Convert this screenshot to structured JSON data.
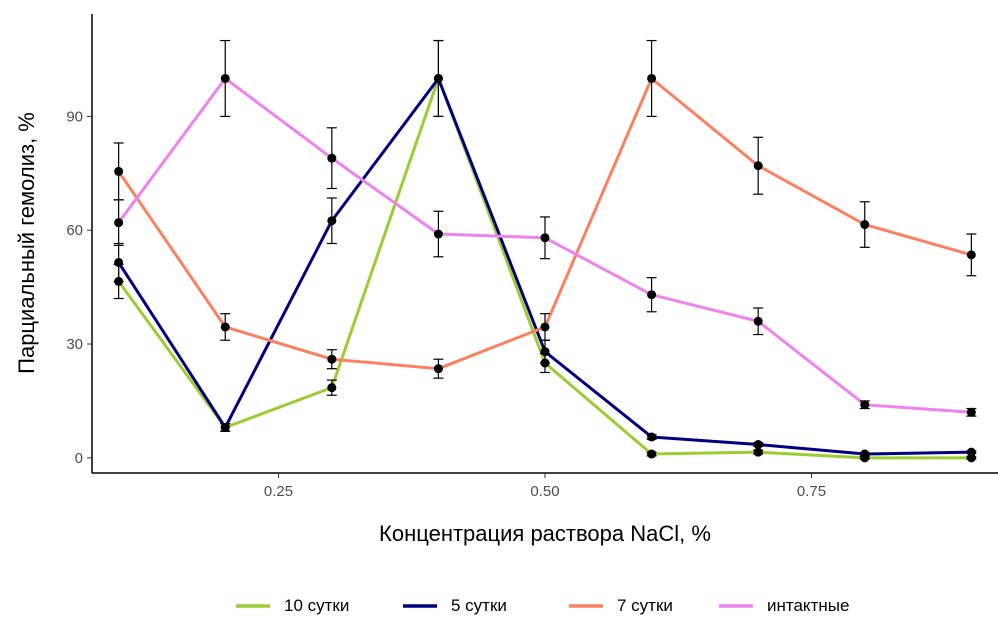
{
  "chart_data": {
    "type": "line",
    "xlabel": "Концентрация раствора NaCl, %",
    "ylabel": "Парциальный гемолиз, %",
    "xlim": [
      0.075,
      0.925
    ],
    "ylim": [
      -4,
      117
    ],
    "x_ticks": [
      {
        "value": 0.25,
        "label": "0.25"
      },
      {
        "value": 0.5,
        "label": "0.50"
      },
      {
        "value": 0.75,
        "label": "0.75"
      }
    ],
    "y_ticks": [
      {
        "value": 0,
        "label": "0"
      },
      {
        "value": 30,
        "label": "30"
      },
      {
        "value": 60,
        "label": "60"
      },
      {
        "value": 90,
        "label": "90"
      }
    ],
    "grid": false,
    "legend_position": "bottom",
    "x": [
      0.1,
      0.2,
      0.3,
      0.4,
      0.5,
      0.6,
      0.7,
      0.8,
      0.9
    ],
    "series": [
      {
        "name": "10 сутки",
        "color": "#9acd32",
        "values": [
          46.5,
          8,
          18.5,
          100,
          25,
          1,
          1.5,
          0,
          0
        ],
        "errors": [
          4.5,
          1,
          2,
          10,
          2.5,
          0.5,
          0.5,
          0.3,
          0.3
        ]
      },
      {
        "name": "5 сутки",
        "color": "#000080",
        "values": [
          51.5,
          8,
          62.5,
          100,
          28,
          5.5,
          3.5,
          1,
          1.5
        ],
        "errors": [
          5,
          1,
          6,
          10,
          3,
          0.6,
          0.5,
          0.3,
          0.3
        ]
      },
      {
        "name": "7 сутки",
        "color": "#fa8060",
        "values": [
          75.5,
          34.5,
          26,
          23.5,
          34.5,
          100,
          77,
          61.5,
          53.5
        ],
        "errors": [
          7.5,
          3.5,
          2.5,
          2.5,
          3.5,
          10,
          7.5,
          6,
          5.5
        ]
      },
      {
        "name": "интактные",
        "color": "#ee82ee",
        "values": [
          62,
          100,
          79,
          59,
          58,
          43,
          36,
          14,
          12
        ],
        "errors": [
          6,
          10,
          8,
          6,
          5.5,
          4.5,
          3.5,
          1,
          1
        ]
      }
    ]
  }
}
